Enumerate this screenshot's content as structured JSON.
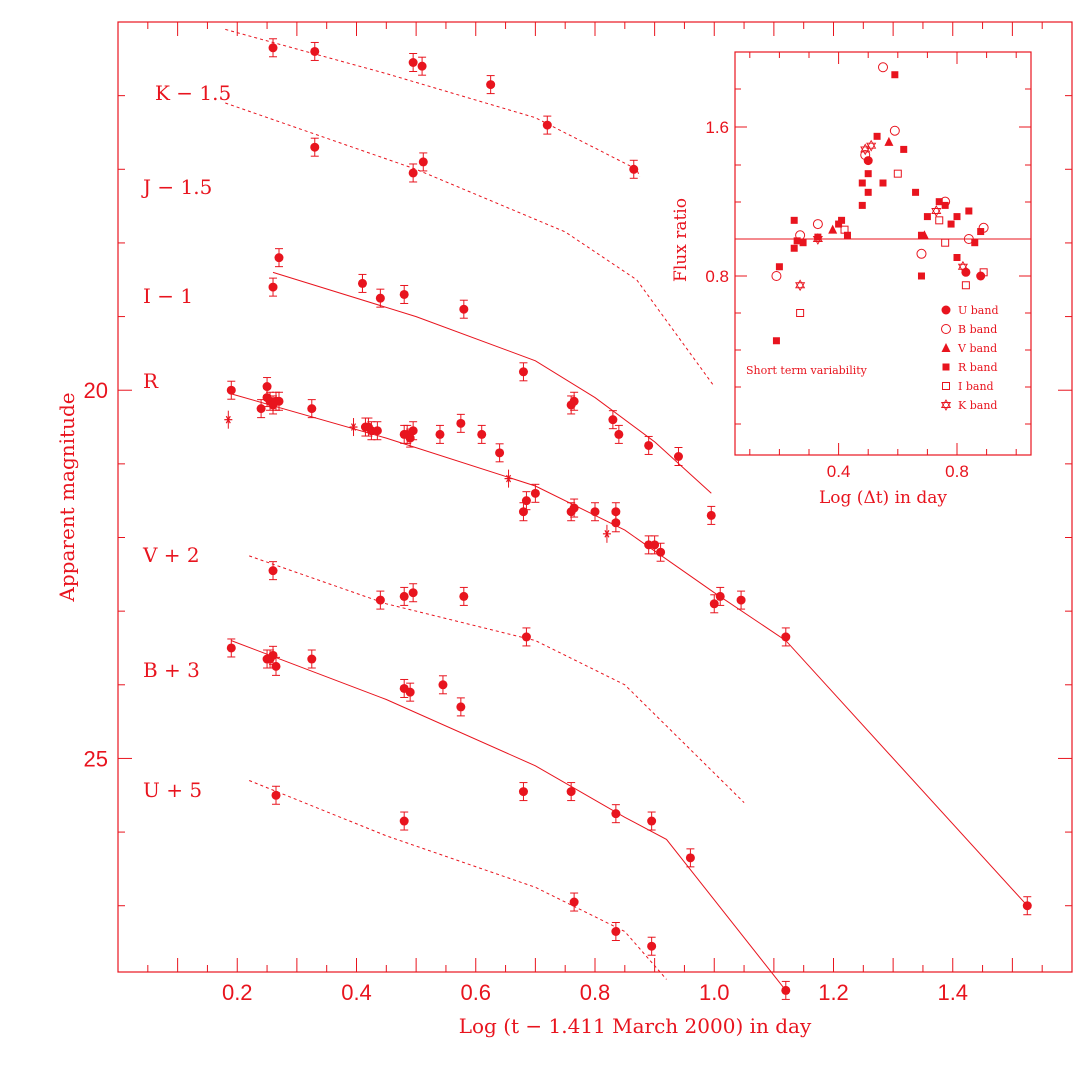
{
  "chart_data": [
    {
      "type": "scatter",
      "xlabel": "Log (t − 1.411 March 2000) in day",
      "ylabel": "Apparent magnitude",
      "xlim": [
        0.0,
        1.6
      ],
      "ylim": [
        28.0,
        15.3
      ],
      "y_inverted": true,
      "x_ticks": [
        "0.2",
        "0.4",
        "0.6",
        "0.8",
        "1.0",
        "1.2",
        "1.4"
      ],
      "y_ticks": [
        "20",
        "25"
      ],
      "color": "#e8141e",
      "series": [
        {
          "name": "K − 1.5",
          "points": [
            [
              0.26,
              15.35
            ],
            [
              0.33,
              15.4
            ],
            [
              0.495,
              15.55
            ],
            [
              0.51,
              15.6
            ],
            [
              0.625,
              15.85
            ],
            [
              0.72,
              16.4
            ],
            [
              0.865,
              17.0
            ]
          ],
          "model": {
            "style": "dotted",
            "points": [
              [
                0.18,
                15.1
              ],
              [
                0.45,
                15.7
              ],
              [
                0.7,
                16.3
              ],
              [
                0.87,
                17.0
              ],
              [
                0.875,
                17.1
              ]
            ]
          }
        },
        {
          "name": "J − 1.5",
          "points": [
            [
              0.33,
              16.7
            ],
            [
              0.495,
              17.05
            ],
            [
              0.512,
              16.9
            ]
          ],
          "model": {
            "style": "dotted",
            "points": [
              [
                0.18,
                16.1
              ],
              [
                0.5,
                17.0
              ],
              [
                0.75,
                17.85
              ],
              [
                0.87,
                18.5
              ],
              [
                1.0,
                19.95
              ]
            ]
          }
        },
        {
          "name": "I − 1",
          "points": [
            [
              0.26,
              18.6
            ],
            [
              0.27,
              18.2
            ],
            [
              0.41,
              18.55
            ],
            [
              0.44,
              18.75
            ],
            [
              0.48,
              18.7
            ],
            [
              0.58,
              18.9
            ],
            [
              0.68,
              19.75
            ],
            [
              0.76,
              20.2
            ],
            [
              0.765,
              20.15
            ],
            [
              0.83,
              20.4
            ],
            [
              0.84,
              20.6
            ],
            [
              0.89,
              20.75
            ],
            [
              0.94,
              20.9
            ],
            [
              0.995,
              21.7
            ]
          ],
          "model": {
            "style": "solid",
            "points": [
              [
                0.26,
                18.4
              ],
              [
                0.5,
                19.0
              ],
              [
                0.7,
                19.6
              ],
              [
                0.8,
                20.1
              ],
              [
                0.9,
                20.7
              ],
              [
                0.995,
                21.4
              ]
            ]
          }
        },
        {
          "name": "R",
          "points": [
            [
              0.19,
              20.0
            ],
            [
              0.24,
              20.25
            ],
            [
              0.25,
              19.95
            ],
            [
              0.25,
              20.1
            ],
            [
              0.255,
              20.15
            ],
            [
              0.26,
              20.2
            ],
            [
              0.265,
              20.15
            ],
            [
              0.27,
              20.15
            ],
            [
              0.325,
              20.25
            ],
            [
              0.415,
              20.5
            ],
            [
              0.42,
              20.5
            ],
            [
              0.425,
              20.55
            ],
            [
              0.435,
              20.55
            ],
            [
              0.48,
              20.6
            ],
            [
              0.485,
              20.6
            ],
            [
              0.49,
              20.65
            ],
            [
              0.495,
              20.55
            ],
            [
              0.54,
              20.6
            ],
            [
              0.575,
              20.45
            ],
            [
              0.61,
              20.6
            ],
            [
              0.64,
              20.85
            ],
            [
              0.68,
              21.65
            ],
            [
              0.685,
              21.5
            ],
            [
              0.7,
              21.4
            ],
            [
              0.76,
              21.65
            ],
            [
              0.765,
              21.6
            ],
            [
              0.8,
              21.65
            ],
            [
              0.835,
              21.65
            ],
            [
              0.835,
              21.8
            ],
            [
              0.89,
              22.1
            ],
            [
              0.9,
              22.1
            ],
            [
              0.91,
              22.2
            ],
            [
              1.0,
              22.9
            ],
            [
              1.01,
              22.8
            ],
            [
              1.045,
              22.85
            ],
            [
              1.12,
              23.35
            ],
            [
              1.525,
              27.0
            ]
          ],
          "model": {
            "style": "solid",
            "points": [
              [
                0.19,
                20.05
              ],
              [
                0.45,
                20.65
              ],
              [
                0.7,
                21.3
              ],
              [
                0.85,
                21.9
              ],
              [
                1.0,
                22.75
              ],
              [
                1.12,
                23.4
              ],
              [
                1.525,
                27.0
              ]
            ]
          }
        },
        {
          "name": "V + 2",
          "points": [
            [
              0.26,
              22.45
            ],
            [
              0.44,
              22.85
            ],
            [
              0.48,
              22.8
            ],
            [
              0.495,
              22.75
            ],
            [
              0.58,
              22.8
            ],
            [
              0.685,
              23.35
            ]
          ],
          "model": {
            "style": "dotted",
            "points": [
              [
                0.22,
                22.25
              ],
              [
                0.45,
                22.9
              ],
              [
                0.7,
                23.4
              ],
              [
                0.85,
                24.0
              ],
              [
                1.05,
                25.6
              ]
            ]
          }
        },
        {
          "name": "B + 3",
          "points": [
            [
              0.19,
              23.5
            ],
            [
              0.25,
              23.65
            ],
            [
              0.255,
              23.65
            ],
            [
              0.26,
              23.6
            ],
            [
              0.265,
              23.75
            ],
            [
              0.325,
              23.65
            ],
            [
              0.48,
              24.05
            ],
            [
              0.49,
              24.1
            ],
            [
              0.545,
              24.0
            ],
            [
              0.575,
              24.3
            ],
            [
              0.68,
              25.45
            ],
            [
              0.76,
              25.45
            ],
            [
              0.835,
              25.75
            ],
            [
              0.895,
              25.85
            ],
            [
              0.96,
              26.35
            ],
            [
              1.12,
              28.15
            ]
          ],
          "model": {
            "style": "solid",
            "points": [
              [
                0.19,
                23.4
              ],
              [
                0.45,
                24.2
              ],
              [
                0.7,
                25.1
              ],
              [
                0.85,
                25.8
              ],
              [
                0.92,
                26.1
              ],
              [
                1.12,
                28.15
              ]
            ]
          }
        },
        {
          "name": "U + 5",
          "points": [
            [
              0.265,
              25.5
            ],
            [
              0.48,
              25.85
            ],
            [
              0.765,
              26.95
            ],
            [
              0.835,
              27.35
            ],
            [
              0.895,
              27.55
            ]
          ],
          "model": {
            "style": "dotted",
            "points": [
              [
                0.22,
                25.3
              ],
              [
                0.45,
                26.05
              ],
              [
                0.7,
                26.75
              ],
              [
                0.85,
                27.35
              ],
              [
                0.92,
                28.0
              ]
            ]
          }
        }
      ],
      "asterisks": [
        [
          0.185,
          20.4
        ],
        [
          0.395,
          20.5
        ],
        [
          0.41,
          18.55
        ],
        [
          0.655,
          21.2
        ],
        [
          0.82,
          21.95
        ]
      ]
    },
    {
      "type": "scatter",
      "title_note": "Short term variability",
      "xlabel": "Log (Δt) in day",
      "ylabel": "Flux ratio",
      "xlim": [
        0.05,
        1.05
      ],
      "ylim": [
        0.45,
        1.85
      ],
      "x_ticks": [
        "0.4",
        "0.8"
      ],
      "y_ticks": [
        "1.6",
        "0.8"
      ],
      "reference_line": 1.0,
      "legend": [
        "U band",
        "B band",
        "V band",
        "R band",
        "I band",
        "K band"
      ],
      "points": [
        {
          "band": "R",
          "x": 0.19,
          "y": 0.45
        },
        {
          "band": "B",
          "x": 0.19,
          "y": 0.8
        },
        {
          "band": "R",
          "x": 0.2,
          "y": 0.85
        },
        {
          "band": "R",
          "x": 0.25,
          "y": 0.95
        },
        {
          "band": "R",
          "x": 0.25,
          "y": 1.1
        },
        {
          "band": "R",
          "x": 0.26,
          "y": 0.99
        },
        {
          "band": "B",
          "x": 0.27,
          "y": 1.02
        },
        {
          "band": "I",
          "x": 0.27,
          "y": 0.6
        },
        {
          "band": "K",
          "x": 0.27,
          "y": 0.75
        },
        {
          "band": "R",
          "x": 0.28,
          "y": 0.98
        },
        {
          "band": "B",
          "x": 0.33,
          "y": 1.08
        },
        {
          "band": "K",
          "x": 0.33,
          "y": 1.0
        },
        {
          "band": "R",
          "x": 0.33,
          "y": 1.01
        },
        {
          "band": "V",
          "x": 0.38,
          "y": 1.05
        },
        {
          "band": "R",
          "x": 0.4,
          "y": 1.08
        },
        {
          "band": "R",
          "x": 0.41,
          "y": 1.1
        },
        {
          "band": "I",
          "x": 0.42,
          "y": 1.05
        },
        {
          "band": "R",
          "x": 0.43,
          "y": 1.02
        },
        {
          "band": "R",
          "x": 0.48,
          "y": 1.18
        },
        {
          "band": "R",
          "x": 0.48,
          "y": 1.3
        },
        {
          "band": "B",
          "x": 0.49,
          "y": 1.45
        },
        {
          "band": "K",
          "x": 0.49,
          "y": 1.48
        },
        {
          "band": "R",
          "x": 0.5,
          "y": 1.25
        },
        {
          "band": "R",
          "x": 0.5,
          "y": 1.35
        },
        {
          "band": "U",
          "x": 0.5,
          "y": 1.42
        },
        {
          "band": "K",
          "x": 0.51,
          "y": 1.5
        },
        {
          "band": "R",
          "x": 0.53,
          "y": 1.55
        },
        {
          "band": "R",
          "x": 0.55,
          "y": 1.3
        },
        {
          "band": "B",
          "x": 0.55,
          "y": 1.92
        },
        {
          "band": "V",
          "x": 0.57,
          "y": 1.52
        },
        {
          "band": "R",
          "x": 0.59,
          "y": 1.88
        },
        {
          "band": "B",
          "x": 0.59,
          "y": 1.58
        },
        {
          "band": "I",
          "x": 0.6,
          "y": 1.35
        },
        {
          "band": "R",
          "x": 0.62,
          "y": 1.48
        },
        {
          "band": "R",
          "x": 0.66,
          "y": 1.25
        },
        {
          "band": "R",
          "x": 0.68,
          "y": 1.02
        },
        {
          "band": "B",
          "x": 0.68,
          "y": 0.92
        },
        {
          "band": "V",
          "x": 0.69,
          "y": 1.02
        },
        {
          "band": "R",
          "x": 0.68,
          "y": 0.8
        },
        {
          "band": "R",
          "x": 0.7,
          "y": 1.12
        },
        {
          "band": "K",
          "x": 0.73,
          "y": 1.15
        },
        {
          "band": "R",
          "x": 0.74,
          "y": 1.2
        },
        {
          "band": "I",
          "x": 0.74,
          "y": 1.1
        },
        {
          "band": "B",
          "x": 0.76,
          "y": 1.2
        },
        {
          "band": "R",
          "x": 0.76,
          "y": 1.18
        },
        {
          "band": "I",
          "x": 0.76,
          "y": 0.98
        },
        {
          "band": "R",
          "x": 0.78,
          "y": 1.08
        },
        {
          "band": "R",
          "x": 0.8,
          "y": 1.12
        },
        {
          "band": "R",
          "x": 0.8,
          "y": 0.9
        },
        {
          "band": "K",
          "x": 0.82,
          "y": 0.85
        },
        {
          "band": "U",
          "x": 0.83,
          "y": 0.82
        },
        {
          "band": "I",
          "x": 0.83,
          "y": 0.75
        },
        {
          "band": "B",
          "x": 0.84,
          "y": 1.0
        },
        {
          "band": "R",
          "x": 0.84,
          "y": 1.15
        },
        {
          "band": "R",
          "x": 0.86,
          "y": 0.98
        },
        {
          "band": "U",
          "x": 0.88,
          "y": 0.8
        },
        {
          "band": "B",
          "x": 0.89,
          "y": 1.06
        },
        {
          "band": "I",
          "x": 0.89,
          "y": 0.82
        },
        {
          "band": "R",
          "x": 0.88,
          "y": 1.04
        }
      ]
    }
  ]
}
